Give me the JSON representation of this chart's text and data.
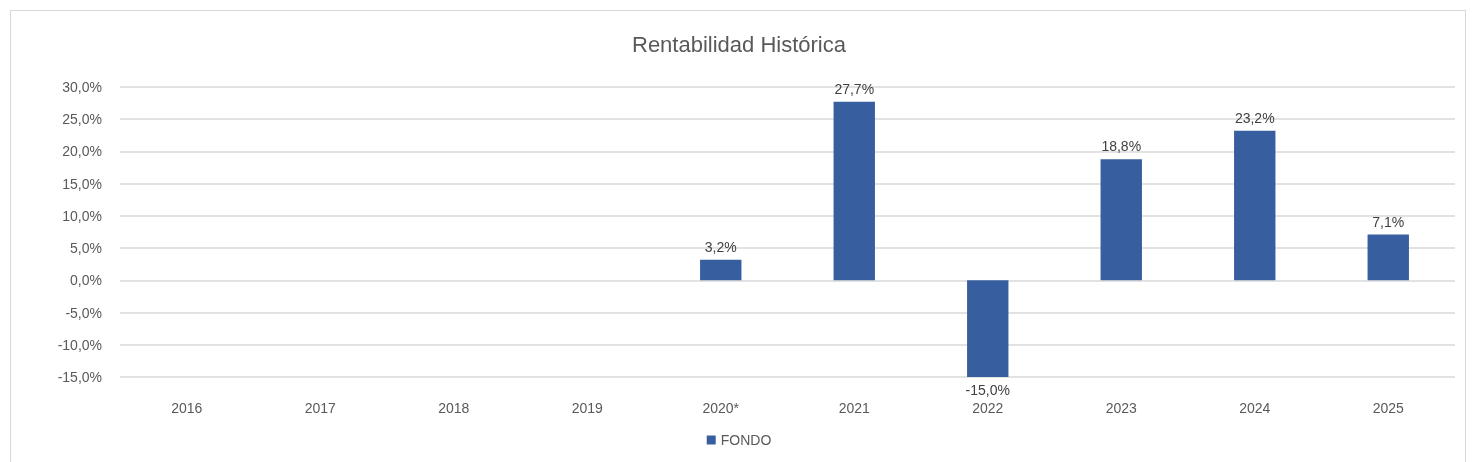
{
  "chart_data": {
    "type": "bar",
    "title": "Rentabilidad Histórica",
    "categories": [
      "2016",
      "2017",
      "2018",
      "2019",
      "2020*",
      "2021",
      "2022",
      "2023",
      "2024",
      "2025"
    ],
    "series": [
      {
        "name": "FONDO",
        "color": "#375f9f",
        "values": [
          null,
          null,
          null,
          null,
          3.2,
          27.7,
          -15.0,
          18.8,
          23.2,
          7.1
        ],
        "value_labels": [
          null,
          null,
          null,
          null,
          "3,2%",
          "27,7%",
          "-15,0%",
          "18,8%",
          "23,2%",
          "7,1%"
        ]
      }
    ],
    "ylim": [
      -15,
      30
    ],
    "yticks": [
      {
        "value": -15,
        "label": "-15,0%"
      },
      {
        "value": -10,
        "label": "-10,0%"
      },
      {
        "value": -5,
        "label": "-5,0%"
      },
      {
        "value": 0,
        "label": "0,0%"
      },
      {
        "value": 5,
        "label": "5,0%"
      },
      {
        "value": 10,
        "label": "10,0%"
      },
      {
        "value": 15,
        "label": "15,0%"
      },
      {
        "value": 20,
        "label": "20,0%"
      },
      {
        "value": 25,
        "label": "25,0%"
      },
      {
        "value": 30,
        "label": "30,0%"
      }
    ],
    "grid": "y",
    "legend": "bottom"
  }
}
